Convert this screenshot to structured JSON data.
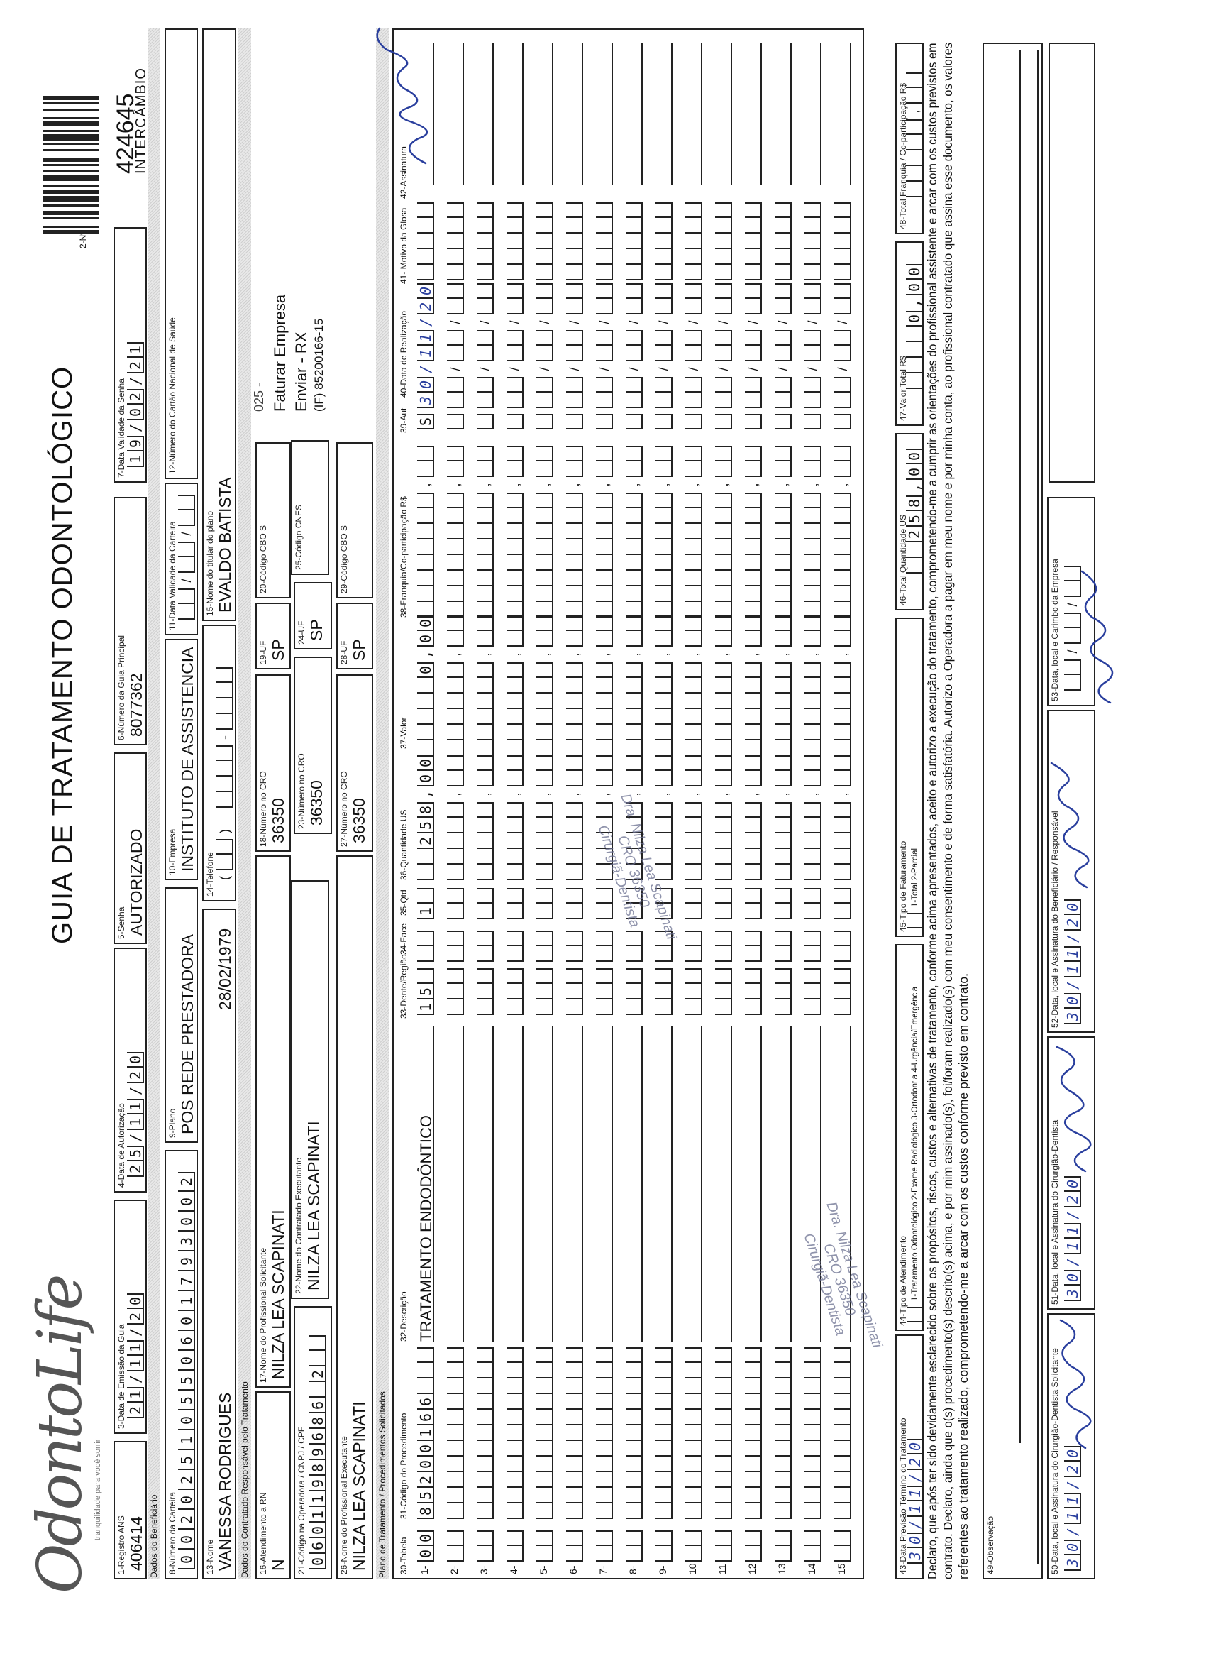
{
  "logo": {
    "text": "OdontoLife",
    "tagline": "tranquilidade para você sorrir"
  },
  "title": "GUIA DE TRATAMENTO ODONTOLÓGICO",
  "numero": {
    "label": "2-Nº",
    "value": "424645",
    "tipo": "INTERCÂMBIO"
  },
  "header": {
    "registro_ans": {
      "label": "1-Registro ANS",
      "value": "406414"
    },
    "data_emissao": {
      "label": "3-Data de Emissão da Guia",
      "value": "21/11/20"
    },
    "data_autorizacao": {
      "label": "4-Data de Autorização",
      "value": "25/11/20"
    },
    "senha": {
      "label": "5-Senha",
      "value": "AUTORIZADO"
    },
    "guia_principal": {
      "label": "6-Número da Guia Principal",
      "value": "8077362"
    },
    "validade_senha": {
      "label": "7-Data Validade da Senha",
      "value": "19/02/21"
    }
  },
  "beneficiario": {
    "section": "Dados do Beneficiário",
    "carteira": {
      "label": "8-Número da Carteira",
      "value": "00202510550601793002"
    },
    "plano": {
      "label": "9-Plano",
      "value": "POS REDE PRESTADORA"
    },
    "empresa": {
      "label": "10-Empresa",
      "value": "INSTITUTO DE ASSISTENCIA"
    },
    "validade_carteira": {
      "label": "11-Data Validade da Carteira",
      "value": ""
    },
    "cartao_nacional": {
      "label": "12-Número do Cartão Nacional de Saúde",
      "value": ""
    },
    "nome": {
      "label": "13-Nome",
      "value": "VANESSA RODRIGUES",
      "nascimento": "28/02/1979"
    },
    "telefone": {
      "label": "14-Telefone",
      "value": ""
    },
    "titular": {
      "label": "15-Nome do titular do plano",
      "value": "EVALDO BATISTA"
    }
  },
  "contratado": {
    "section": "Dados do Contratado Responsável pelo Tratamento",
    "atendimento_rn": {
      "label": "16-Atendimento a RN",
      "value": "N"
    },
    "solicitante": {
      "label": "17-Nome do Profissional Solicitante",
      "value": "NILZA LEA SCAPINATI"
    },
    "cro_solicitante": {
      "label": "18-Número no CRO",
      "value": "36350"
    },
    "uf_solicitante": {
      "label": "19-UF",
      "value": "SP"
    },
    "cbo_solicitante": {
      "label": "20-Código CBO S",
      "value": ""
    },
    "codigo_operadora": {
      "label": "21-Código na Operadora / CNPJ / CPF",
      "value": "06011989686 2"
    },
    "nome_executante": {
      "label": "22-Nome do Contratado Executante",
      "value": "NILZA LEA SCAPINATI"
    },
    "cro_executante": {
      "label": "23-Número no CRO",
      "value": "36350"
    },
    "uf_executante": {
      "label": "24-UF",
      "value": "SP"
    },
    "cnes": {
      "label": "25-Código CNES",
      "value": ""
    },
    "profissional_executante": {
      "label": "26-Nome do Profissional Executante",
      "value": "NILZA LEA SCAPINATI"
    },
    "cro_profissional": {
      "label": "27-Número no CRO",
      "value": "36350"
    },
    "uf_profissional": {
      "label": "28-UF",
      "value": "SP"
    },
    "cbo_profissional": {
      "label": "29-Código CBO S",
      "value": ""
    },
    "info": {
      "code": "025 -",
      "line1": "Faturar Empresa",
      "line2": "Enviar - RX",
      "line3": "(IF) 85200166-15"
    }
  },
  "procedimentos": {
    "section": "Plano de Tratamento / Procedimentos Solicitados",
    "headers": {
      "tabela": "30-Tabela",
      "codigo": "31-Código do Procedimento",
      "descricao": "32-Descrição",
      "dente": "33-Dente/Região",
      "face": "34-Face",
      "qtd": "35-Qtd",
      "qtd_us": "36-Quantidade US",
      "valor": "37-Valor",
      "franquia": "38-Franquia/Co-participação R$",
      "aut": "39-Aut",
      "data": "40-Data de Realização",
      "glosa": "41- Motivo da Glosa",
      "assinatura": "42-Assinatura"
    },
    "rows": [
      {
        "n": "1-",
        "tabela": "00",
        "codigo": "85200166",
        "descricao": "TRATAMENTO ENDODÔNTICO",
        "dente": "15",
        "face": "",
        "qtd": "1",
        "qtd_us": "258,00",
        "valor": "0,00",
        "franquia": "",
        "aut": "S",
        "data": "30/11/20",
        "signed": true
      },
      {
        "n": "2-"
      },
      {
        "n": "3-"
      },
      {
        "n": "4-"
      },
      {
        "n": "5-"
      },
      {
        "n": "6-"
      },
      {
        "n": "7-"
      },
      {
        "n": "8-"
      },
      {
        "n": "9-"
      },
      {
        "n": "10"
      },
      {
        "n": "11"
      },
      {
        "n": "12"
      },
      {
        "n": "13"
      },
      {
        "n": "14"
      },
      {
        "n": "15"
      }
    ]
  },
  "totais": {
    "previsao": {
      "label": "43-Data Previsão Término do Tratamento",
      "value": "30/11/20"
    },
    "tipo_atendimento": {
      "label": "44-Tipo de Atendimento",
      "options": "1-Tratamento Odontológico  2-Exame Radiológico  3-Ortodontia  4-Urgência/Emergência",
      "value": ""
    },
    "tipo_faturamento": {
      "label": "45-Tipo de Faturamento",
      "options": "1-Total  2-Parcial",
      "value": ""
    },
    "total_us": {
      "label": "46-Total Quantidade US",
      "value": "258,00"
    },
    "valor_total": {
      "label": "47-Valor Total R$",
      "value": "0,00"
    },
    "total_franquia": {
      "label": "48-Total Franquia / Co-participação R$",
      "value": ""
    }
  },
  "declaracao": {
    "line1": "Declaro, que após ter sido devidamente esclarecido sobre os propósitos, riscos, custos e alternativas de tratamento, conforme acima apresentados, aceito e autorizo a execução do tratamento, comprometendo-me a cumprir as orientações do profissional assistente e arcar com os custos previstos em",
    "line2": "contrato. Declaro, ainda que o(s) procedimento(s) descrito(s) acima, e por mim assinado(s), foi/foram realizado(s) com meu consentimento e de forma satisfatória. Autorizo a Operadora a pagar em meu nome e por minha conta, ao profissional contratado que assina esse documento, os valores",
    "line3": "referentes ao tratamento realizado, comprometendo-me a arcar com os custos conforme previsto em contrato."
  },
  "observacao": {
    "label": "49-Observação",
    "value": ""
  },
  "assinaturas": {
    "solicitante": {
      "label": "50-Data, local e Assinatura do Cirurgião-Dentista Solicitante",
      "date": "30/11/20"
    },
    "executante": {
      "label": "51-Data, local e Assinatura do Cirurgião-Dentista",
      "date": "30/11/20"
    },
    "beneficiario": {
      "label": "52-Data, local e Assinatura do Beneficiário / Responsável",
      "date": "30/11/20"
    },
    "empresa": {
      "label": "53-Data, local e Carimbo da Empresa",
      "date": ""
    }
  },
  "carimbo": {
    "line1": "Dra. Nilza Lea Scapinati",
    "line2": "CRO 36350",
    "line3": "Cirurgiã-Dentista"
  }
}
